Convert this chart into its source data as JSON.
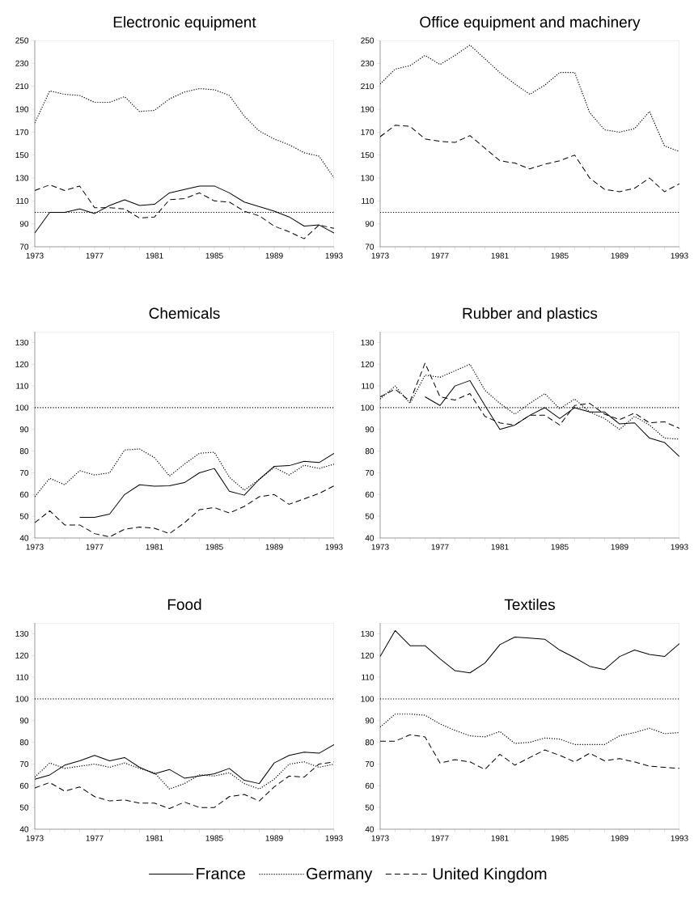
{
  "chart_data": [
    {
      "type": "line",
      "title": "Electronic equipment",
      "x": [
        1973,
        1974,
        1975,
        1976,
        1977,
        1978,
        1979,
        1980,
        1981,
        1982,
        1983,
        1984,
        1985,
        1986,
        1987,
        1988,
        1989,
        1990,
        1991,
        1992,
        1993
      ],
      "xlim": [
        1973,
        1993
      ],
      "xticks": [
        1973,
        1977,
        1981,
        1985,
        1989,
        1993
      ],
      "ylim": [
        70,
        250
      ],
      "yticks": [
        70,
        90,
        110,
        130,
        150,
        170,
        190,
        210,
        230,
        250
      ],
      "marker": "none",
      "ref_lines": [
        {
          "axis": "y",
          "value": 100,
          "color": "#000000",
          "line_style": "dotted"
        }
      ],
      "series": [
        {
          "color": "#000000",
          "line_style": "solid",
          "values": [
            82,
            100,
            100,
            103,
            99,
            106,
            111,
            106,
            107,
            117,
            120,
            123,
            123,
            117,
            109,
            105,
            101,
            96,
            88,
            89,
            82
          ]
        },
        {
          "color": "#000000",
          "line_style": "dotted",
          "values": [
            178,
            206,
            203,
            202,
            196,
            196,
            201,
            188,
            189,
            199,
            205,
            208,
            207,
            202,
            184,
            171,
            164,
            159,
            152,
            149,
            130
          ]
        },
        {
          "color": "#000000",
          "line_style": "dashed",
          "values": [
            119,
            124,
            119,
            123,
            104,
            104,
            103,
            95,
            96,
            111,
            112,
            117,
            110,
            109,
            101,
            97,
            88,
            83,
            77,
            89,
            86
          ]
        }
      ]
    },
    {
      "type": "line",
      "title": "Office equipment and machinery",
      "x": [
        1973,
        1974,
        1975,
        1976,
        1977,
        1978,
        1979,
        1980,
        1981,
        1982,
        1983,
        1984,
        1985,
        1986,
        1987,
        1988,
        1989,
        1990,
        1991,
        1992,
        1993
      ],
      "xlim": [
        1973,
        1993
      ],
      "xticks": [
        1973,
        1977,
        1981,
        1985,
        1989,
        1993
      ],
      "ylim": [
        70,
        250
      ],
      "yticks": [
        70,
        90,
        110,
        130,
        150,
        170,
        190,
        210,
        230,
        250
      ],
      "marker": "none",
      "ref_lines": [
        {
          "axis": "y",
          "value": 100,
          "color": "#000000",
          "line_style": "dotted"
        }
      ],
      "series": [
        {
          "color": "#000000",
          "line_style": "dotted",
          "values": [
            212,
            225,
            228,
            237,
            229,
            237,
            246,
            234,
            222,
            212,
            203,
            211,
            222,
            222,
            187,
            172,
            170,
            173,
            188,
            158,
            153
          ]
        },
        {
          "color": "#000000",
          "line_style": "dashed",
          "values": [
            166,
            176,
            175,
            164,
            162,
            161,
            167,
            156,
            145,
            143,
            138,
            142,
            145,
            150,
            130,
            120,
            118,
            121,
            130,
            118,
            125
          ]
        }
      ]
    },
    {
      "type": "line",
      "title": "Chemicals",
      "x": [
        1973,
        1974,
        1975,
        1976,
        1977,
        1978,
        1979,
        1980,
        1981,
        1982,
        1983,
        1984,
        1985,
        1986,
        1987,
        1988,
        1989,
        1990,
        1991,
        1992,
        1993
      ],
      "xlim": [
        1973,
        1993
      ],
      "xticks": [
        1973,
        1977,
        1981,
        1985,
        1989,
        1993
      ],
      "ylim": [
        40,
        135
      ],
      "yticks": [
        40,
        50,
        60,
        70,
        80,
        90,
        100,
        110,
        120,
        130
      ],
      "marker": "none",
      "ref_lines": [
        {
          "axis": "y",
          "value": 100,
          "color": "#000000",
          "line_style": "dotted"
        }
      ],
      "series": [
        {
          "color": "#000000",
          "line_style": "solid",
          "values": [
            null,
            null,
            null,
            49.5,
            49.5,
            51,
            60,
            64.5,
            63.8,
            64,
            65.5,
            70,
            72,
            61.5,
            59.7,
            67,
            73,
            73.3,
            75.3,
            74.7,
            79
          ]
        },
        {
          "color": "#000000",
          "line_style": "dotted",
          "values": [
            59,
            67.5,
            64.5,
            71,
            69,
            70,
            80.5,
            81,
            77,
            68.5,
            74,
            79,
            79.5,
            68,
            62,
            67,
            72.5,
            69,
            73.5,
            72,
            74
          ]
        },
        {
          "color": "#000000",
          "line_style": "dashed",
          "values": [
            47,
            52.5,
            46,
            46,
            42,
            40.5,
            44,
            45,
            44.5,
            42,
            47,
            53,
            54,
            51.5,
            54.5,
            59,
            60,
            55.5,
            58,
            60.5,
            64
          ]
        }
      ]
    },
    {
      "type": "line",
      "title": "Rubber and plastics",
      "x": [
        1973,
        1974,
        1975,
        1976,
        1977,
        1978,
        1979,
        1980,
        1981,
        1982,
        1983,
        1984,
        1985,
        1986,
        1987,
        1988,
        1989,
        1990,
        1991,
        1992,
        1993
      ],
      "xlim": [
        1973,
        1993
      ],
      "xticks": [
        1973,
        1977,
        1981,
        1985,
        1989,
        1993
      ],
      "ylim": [
        40,
        135
      ],
      "yticks": [
        40,
        50,
        60,
        70,
        80,
        90,
        100,
        110,
        120,
        130
      ],
      "marker": "none",
      "ref_lines": [
        {
          "axis": "y",
          "value": 100,
          "color": "#000000",
          "line_style": "dotted"
        }
      ],
      "series": [
        {
          "color": "#000000",
          "line_style": "solid",
          "values": [
            null,
            null,
            null,
            105,
            101,
            110,
            112.5,
            101,
            90,
            92,
            96.5,
            100,
            95,
            100,
            98,
            98,
            92.5,
            93,
            86,
            84,
            77.5
          ]
        },
        {
          "color": "#000000",
          "line_style": "dotted",
          "values": [
            104,
            110,
            102,
            115,
            114,
            117,
            120,
            108,
            102,
            97,
            102,
            106.5,
            99.5,
            104,
            98,
            95,
            90,
            96,
            92,
            86,
            85.5
          ]
        },
        {
          "color": "#000000",
          "line_style": "dashed",
          "values": [
            105,
            108.5,
            103,
            120.5,
            105,
            103.5,
            106.5,
            96,
            93,
            92,
            96.5,
            96.5,
            92,
            101,
            102,
            97,
            94.5,
            97.5,
            93,
            93.5,
            90.5
          ]
        }
      ]
    },
    {
      "type": "line",
      "title": "Food",
      "x": [
        1973,
        1974,
        1975,
        1976,
        1977,
        1978,
        1979,
        1980,
        1981,
        1982,
        1983,
        1984,
        1985,
        1986,
        1987,
        1988,
        1989,
        1990,
        1991,
        1992,
        1993
      ],
      "xlim": [
        1973,
        1993
      ],
      "xticks": [
        1973,
        1977,
        1981,
        1985,
        1989,
        1993
      ],
      "ylim": [
        40,
        135
      ],
      "yticks": [
        40,
        50,
        60,
        70,
        80,
        90,
        100,
        110,
        120,
        130
      ],
      "marker": "none",
      "ref_lines": [
        {
          "axis": "y",
          "value": 100,
          "color": "#000000",
          "line_style": "dotted"
        }
      ],
      "series": [
        {
          "color": "#000000",
          "line_style": "solid",
          "values": [
            63,
            65,
            69.5,
            71.5,
            74,
            71.5,
            73,
            68.5,
            65.5,
            67.5,
            63.5,
            64.5,
            65.5,
            68,
            62.5,
            61,
            70.5,
            74,
            75.5,
            75,
            79
          ]
        },
        {
          "color": "#000000",
          "line_style": "dotted",
          "values": [
            64,
            70.5,
            68,
            69,
            70,
            68.5,
            70.5,
            68,
            66,
            58.5,
            61,
            65,
            64.5,
            66,
            61,
            58.5,
            63,
            70,
            71,
            68.5,
            70
          ]
        },
        {
          "color": "#000000",
          "line_style": "dashed",
          "values": [
            59,
            61.5,
            57.5,
            59.5,
            55,
            53,
            53.5,
            52,
            52,
            49.5,
            52.5,
            50,
            50,
            55,
            56,
            53,
            59.5,
            64.5,
            64,
            70,
            71
          ]
        }
      ]
    },
    {
      "type": "line",
      "title": "Textiles",
      "x": [
        1973,
        1974,
        1975,
        1976,
        1977,
        1978,
        1979,
        1980,
        1981,
        1982,
        1983,
        1984,
        1985,
        1986,
        1987,
        1988,
        1989,
        1990,
        1991,
        1992,
        1993
      ],
      "xlim": [
        1973,
        1993
      ],
      "xticks": [
        1973,
        1977,
        1981,
        1985,
        1989,
        1993
      ],
      "ylim": [
        40,
        135
      ],
      "yticks": [
        40,
        50,
        60,
        70,
        80,
        90,
        100,
        110,
        120,
        130
      ],
      "marker": "none",
      "legend": "bottom",
      "ref_lines": [
        {
          "axis": "y",
          "value": 100,
          "color": "#000000",
          "line_style": "dotted"
        }
      ],
      "series": [
        {
          "name": "France",
          "color": "#000000",
          "line_style": "solid",
          "values": [
            119.5,
            131.5,
            124.5,
            124.5,
            118.5,
            113,
            112,
            116.5,
            125,
            128.5,
            128,
            127.5,
            122.5,
            119,
            115,
            113.5,
            119.5,
            122.5,
            120.5,
            119.5,
            125.5
          ]
        },
        {
          "name": "Germany",
          "color": "#000000",
          "line_style": "dotted",
          "values": [
            87,
            93,
            93,
            92.5,
            88.5,
            85.5,
            83,
            82.5,
            85,
            79.5,
            80,
            82,
            81.5,
            79,
            79,
            79,
            83,
            84.5,
            86.5,
            84,
            84.5
          ]
        },
        {
          "name": "United Kingdom",
          "color": "#000000",
          "line_style": "dashed",
          "values": [
            80.5,
            80.5,
            83.5,
            82.5,
            70.5,
            72,
            71,
            67.5,
            74.5,
            69.5,
            73,
            76.5,
            74,
            71,
            75,
            71.5,
            72.5,
            71,
            69,
            68.5,
            68
          ]
        }
      ]
    }
  ]
}
